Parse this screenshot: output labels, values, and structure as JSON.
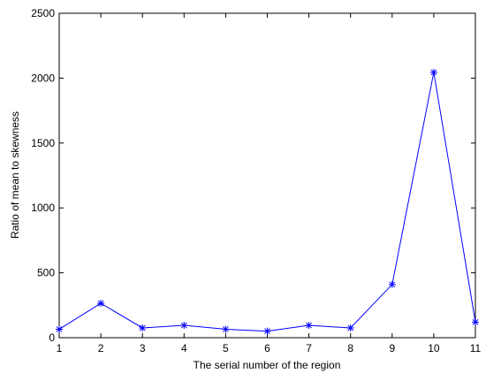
{
  "chart_data": {
    "type": "line",
    "title": "",
    "xlabel": "The serial number of the region",
    "ylabel": "Ratio of mean to skewness",
    "x": [
      1,
      2,
      3,
      4,
      5,
      6,
      7,
      8,
      9,
      10,
      11
    ],
    "xlim": [
      1,
      11
    ],
    "ylim": [
      0,
      2500
    ],
    "xticks": [
      1,
      2,
      3,
      4,
      5,
      6,
      7,
      8,
      9,
      10,
      11
    ],
    "yticks": [
      0,
      500,
      1000,
      1500,
      2000,
      2500
    ],
    "grid": false,
    "legend": "none",
    "series": [
      {
        "values": [
          65,
          265,
          75,
          95,
          65,
          50,
          95,
          75,
          410,
          2045,
          120
        ],
        "color": "#0000ff",
        "marker": "asterisk"
      }
    ]
  }
}
